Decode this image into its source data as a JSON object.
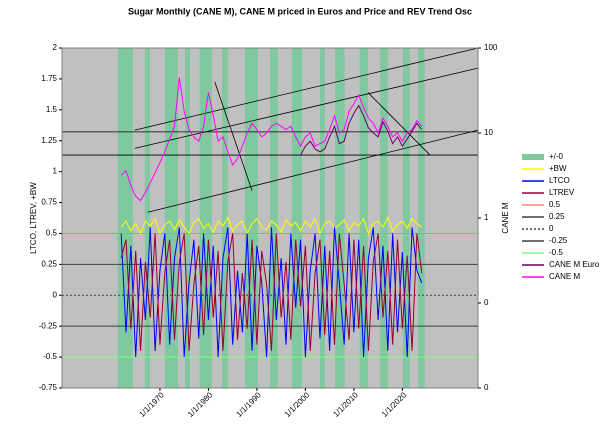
{
  "chart_data": {
    "type": "line",
    "title": "Sugar Monthly (CANE M), CANE M priced in Euros and Price and REV Trend Osc",
    "y_label": "LTCO, LTREV, +BW",
    "y2_label": "CANE M",
    "xlim": [
      1949.8,
      2035.6
    ],
    "xticks": [
      {
        "value": 1970,
        "label": "1/1/1970"
      },
      {
        "value": 1980,
        "label": "1/1/1980"
      },
      {
        "value": 1990,
        "label": "1/1/1990"
      },
      {
        "value": 2000,
        "label": "1/1/2000"
      },
      {
        "value": 2010,
        "label": "1/1/2010"
      },
      {
        "value": 2020,
        "label": "1/1/2020"
      }
    ],
    "ylim": [
      -0.75,
      2
    ],
    "yticks": [
      -0.75,
      -0.5,
      -0.25,
      0,
      0.25,
      0.5,
      0.75,
      1,
      1.25,
      1.5,
      1.75,
      2
    ],
    "y2lim": [
      0.01,
      100
    ],
    "y2_log": true,
    "y2ticks": [
      {
        "value": 0.01,
        "label": "0"
      },
      {
        "value": 0.1,
        "label": "0"
      },
      1,
      10,
      100
    ],
    "background": "#c0c0c0",
    "bands": {
      "name": "+/-0",
      "color": "#80c8a0",
      "ranges": [
        [
          1961.3,
          1964.4
        ],
        [
          1966.9,
          1967.9
        ],
        [
          1971,
          1973.7
        ],
        [
          1975.2,
          1976.2
        ],
        [
          1978.2,
          1980.7
        ],
        [
          1982.8,
          1984
        ],
        [
          1987.5,
          1990.2
        ],
        [
          1992.7,
          1994.3
        ],
        [
          1997.2,
          1999.3
        ],
        [
          2003,
          2004
        ],
        [
          2006.1,
          2008.1
        ],
        [
          2011.2,
          2012.9
        ],
        [
          2015.4,
          2017
        ],
        [
          2020.1,
          2021.5
        ],
        [
          2023.2,
          2024.6
        ]
      ]
    },
    "x": [
      1962,
      1963,
      1964,
      1965,
      1966,
      1967,
      1968,
      1969,
      1970,
      1971,
      1972,
      1973,
      1974,
      1975,
      1976,
      1977,
      1978,
      1979,
      1980,
      1981,
      1982,
      1983,
      1984,
      1985,
      1986,
      1987,
      1988,
      1989,
      1990,
      1991,
      1992,
      1993,
      1994,
      1995,
      1996,
      1997,
      1998,
      1999,
      2000,
      2001,
      2002,
      2003,
      2004,
      2005,
      2006,
      2007,
      2008,
      2009,
      2010,
      2011,
      2012,
      2013,
      2014,
      2015,
      2016,
      2017,
      2018,
      2019,
      2020,
      2021,
      2022,
      2023,
      2024
    ],
    "series": [
      {
        "name": "+BW",
        "color": "#ffff00",
        "values": [
          0.55,
          0.6,
          0.52,
          0.58,
          0.5,
          0.6,
          0.56,
          0.62,
          0.5,
          0.57,
          0.6,
          0.53,
          0.61,
          0.55,
          0.5,
          0.59,
          0.62,
          0.54,
          0.58,
          0.51,
          0.6,
          0.56,
          0.63,
          0.52,
          0.57,
          0.6,
          0.5,
          0.58,
          0.62,
          0.55,
          0.53,
          0.6,
          0.57,
          0.51,
          0.61,
          0.56,
          0.59,
          0.52,
          0.6,
          0.55,
          0.62,
          0.5,
          0.58,
          0.6,
          0.54,
          0.57,
          0.61,
          0.52,
          0.59,
          0.56,
          0.62,
          0.5,
          0.58,
          0.6,
          0.55,
          0.63,
          0.52,
          0.57,
          0.6,
          0.54,
          0.62,
          0.58,
          0.55
        ]
      },
      {
        "name": "LTCO",
        "color": "#0000ff",
        "values": [
          0.5,
          -0.3,
          0.4,
          -0.5,
          0.3,
          -0.2,
          0.55,
          -0.45,
          0.2,
          0.5,
          -0.4,
          0.3,
          0.55,
          -0.5,
          0.1,
          0.45,
          -0.35,
          0.5,
          -0.2,
          0.4,
          -0.5,
          0.3,
          0.55,
          -0.4,
          0.2,
          -0.3,
          0.5,
          -0.45,
          0.4,
          0.1,
          -0.5,
          0.55,
          -0.2,
          0.3,
          -0.4,
          0.5,
          -0.1,
          0.45,
          -0.5,
          0.2,
          0.5,
          -0.35,
          0.4,
          -0.45,
          0.55,
          0.1,
          -0.4,
          0.5,
          -0.3,
          0.45,
          -0.5,
          0.3,
          0.55,
          -0.2,
          0.4,
          -0.45,
          0.5,
          -0.3,
          0.35,
          -0.5,
          0.55,
          0.2,
          0.1
        ]
      },
      {
        "name": "LTREV",
        "color": "#990033",
        "values": [
          0.3,
          0.45,
          -0.27,
          0.36,
          -0.45,
          0.27,
          -0.18,
          0.5,
          -0.4,
          0.18,
          0.45,
          -0.36,
          0.27,
          0.5,
          -0.45,
          0.09,
          0.4,
          -0.32,
          0.45,
          -0.18,
          0.36,
          -0.45,
          0.27,
          0.5,
          -0.36,
          0.18,
          -0.27,
          0.45,
          -0.4,
          0.36,
          0.09,
          -0.45,
          0.5,
          -0.18,
          0.27,
          -0.36,
          0.45,
          -0.09,
          0.4,
          -0.45,
          0.18,
          0.45,
          -0.32,
          0.36,
          -0.4,
          0.5,
          0.09,
          -0.36,
          0.45,
          -0.27,
          0.4,
          -0.45,
          0.27,
          0.5,
          -0.18,
          0.36,
          -0.4,
          0.45,
          -0.27,
          0.32,
          -0.45,
          0.5,
          0.18
        ]
      },
      {
        "name": "CANE M Euro",
        "color": "#660066",
        "axis": "y2",
        "values": [
          null,
          null,
          null,
          null,
          null,
          null,
          null,
          null,
          null,
          null,
          null,
          null,
          null,
          null,
          null,
          null,
          null,
          null,
          null,
          null,
          null,
          null,
          null,
          null,
          null,
          null,
          null,
          null,
          null,
          null,
          null,
          null,
          null,
          null,
          null,
          null,
          null,
          5.5,
          7,
          8,
          6.5,
          6,
          6.5,
          9,
          12,
          7.5,
          8,
          13,
          17,
          21,
          16,
          11.5,
          10,
          9,
          13.5,
          10.5,
          7.5,
          9,
          7,
          8.5,
          10.5,
          13,
          11
        ]
      },
      {
        "name": "CANE M",
        "color": "#ff00ff",
        "axis": "y2",
        "values": [
          3.2,
          3.6,
          2.4,
          1.8,
          1.6,
          2.0,
          2.6,
          3.4,
          4.5,
          6.0,
          8.5,
          12,
          45,
          18,
          11,
          9,
          8,
          12,
          30,
          16,
          8,
          9,
          6,
          4.2,
          5,
          7,
          10,
          13,
          11,
          9,
          10,
          12,
          13,
          12,
          11,
          12,
          9,
          7,
          9,
          10,
          7,
          7.5,
          8,
          11,
          16,
          10,
          11,
          18,
          22,
          28,
          20,
          15,
          13,
          10,
          15,
          12,
          9,
          10,
          8,
          10,
          11,
          14,
          12
        ]
      }
    ],
    "hlines": [
      {
        "name": "0.5",
        "value": 0.5,
        "color": "#ff8080"
      },
      {
        "name": "0.25",
        "value": 0.25,
        "color": "#404040"
      },
      {
        "name": "0",
        "value": 0,
        "color": "#404040",
        "dotted": true
      },
      {
        "name": "-0.25",
        "value": -0.25,
        "color": "#404040"
      },
      {
        "name": "-0.5",
        "value": -0.5,
        "color": "#80ff80"
      }
    ],
    "trend_lines": [
      [
        [
          1964.8,
          10.8
        ],
        [
          2035.6,
          100
        ]
      ],
      [
        [
          1964.8,
          6.6
        ],
        [
          2035.6,
          58
        ]
      ],
      [
        [
          1967.5,
          1.17
        ],
        [
          2035.6,
          10.8
        ]
      ],
      [
        [
          1981.3,
          40
        ],
        [
          1989,
          2.1
        ]
      ],
      [
        [
          2012.9,
          30
        ],
        [
          2025.7,
          5.5
        ]
      ],
      [
        [
          1949.8,
          10.3
        ],
        [
          2035.6,
          10.3
        ]
      ],
      [
        [
          1949.8,
          5.5
        ],
        [
          2035.6,
          5.5
        ]
      ]
    ]
  }
}
